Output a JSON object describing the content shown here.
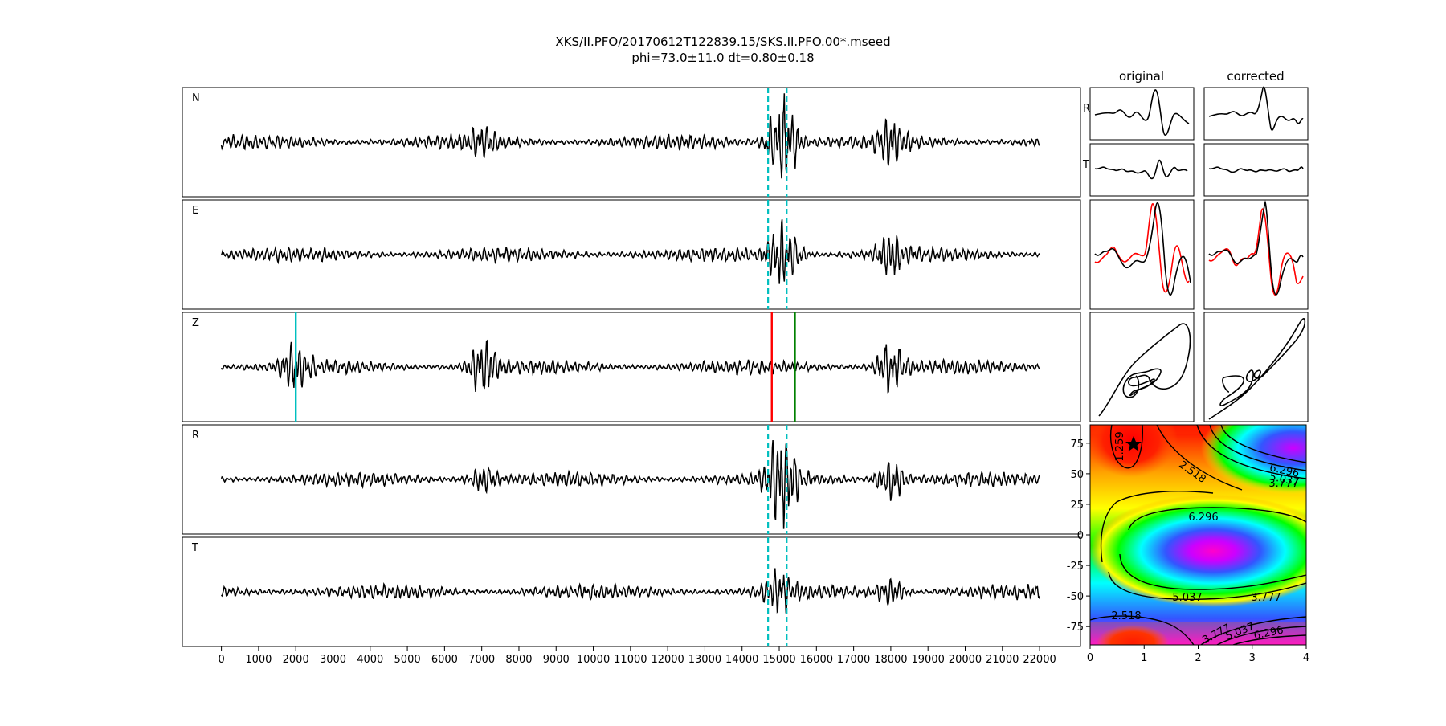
{
  "title": {
    "line1": "XKS/II.PFO/20170612T122839.15/SKS.II.PFO.00*.mseed",
    "line2": "phi=73.0±11.0 dt=0.80±0.18"
  },
  "chart_data": [
    {
      "type": "line",
      "panel": "seismograms",
      "trace_labels": [
        "N",
        "E",
        "Z",
        "R",
        "T"
      ],
      "x_ticks": [
        0,
        1000,
        2000,
        3000,
        4000,
        5000,
        6000,
        7000,
        8000,
        9000,
        10000,
        11000,
        12000,
        13000,
        14000,
        15000,
        16000,
        17000,
        18000,
        19000,
        20000,
        21000,
        22000
      ],
      "x_tick_labels": [
        "0",
        "1000",
        "2000",
        "3000",
        "4000",
        "5000",
        "6000",
        "7000",
        "8000",
        "9000",
        "10000",
        "11000",
        "12000",
        "13000",
        "14000",
        "15000",
        "16000",
        "17000",
        "18000",
        "19000",
        "20000",
        "21000",
        "22000"
      ],
      "xlim": [
        -1050,
        23100
      ],
      "trace_x_range": [
        0,
        22000
      ],
      "window_lines": {
        "color": "#00bfbf",
        "style": "dashed",
        "x": [
          14700,
          15200
        ],
        "traces": [
          "N",
          "E",
          "R",
          "T"
        ]
      },
      "phase_picks": [
        {
          "x": 2000,
          "color": "#00bfbf",
          "trace": "Z"
        },
        {
          "x": 14800,
          "color": "#ff0000",
          "trace": "Z"
        },
        {
          "x": 15420,
          "color": "#008000",
          "trace": "Z"
        }
      ],
      "bursts": [
        {
          "trace": "N",
          "x": [
            7050,
            15000,
            15200,
            18000
          ],
          "amplitude": [
            0.45,
            1.0,
            0.8,
            0.7
          ]
        },
        {
          "trace": "E",
          "x": [
            15000,
            15200,
            18000
          ],
          "amplitude": [
            0.6,
            0.75,
            0.7
          ]
        },
        {
          "trace": "Z",
          "x": [
            2000,
            7050,
            18000
          ],
          "amplitude": [
            0.75,
            1.0,
            0.9
          ]
        },
        {
          "trace": "R",
          "x": [
            7050,
            15000,
            15200,
            18000
          ],
          "amplitude": [
            0.45,
            1.0,
            0.8,
            0.75
          ]
        },
        {
          "trace": "T",
          "x": [
            15000,
            18000
          ],
          "amplitude": [
            0.6,
            0.45
          ]
        }
      ]
    },
    {
      "type": "line",
      "panel": "particle-motion",
      "column_titles": [
        "original",
        "corrected"
      ],
      "row_labels": [
        "R",
        "T"
      ]
    },
    {
      "type": "heatmap",
      "panel": "error-surface",
      "xlim": [
        0,
        4
      ],
      "ylim": [
        -90,
        90
      ],
      "x_ticks": [
        0,
        1,
        2,
        3,
        4
      ],
      "y_ticks": [
        75,
        50,
        25,
        0,
        -25,
        -50,
        -75
      ],
      "contour_labels": [
        "1.259",
        "2.518",
        "6.296",
        "5.037",
        "3.777",
        "6.296",
        "5.037",
        "3.777",
        "2.518",
        "3.777",
        "5.037",
        "6.296"
      ],
      "best": {
        "dt": 0.8,
        "phi": 73.0
      },
      "colormap": "gist_rainbow"
    }
  ]
}
